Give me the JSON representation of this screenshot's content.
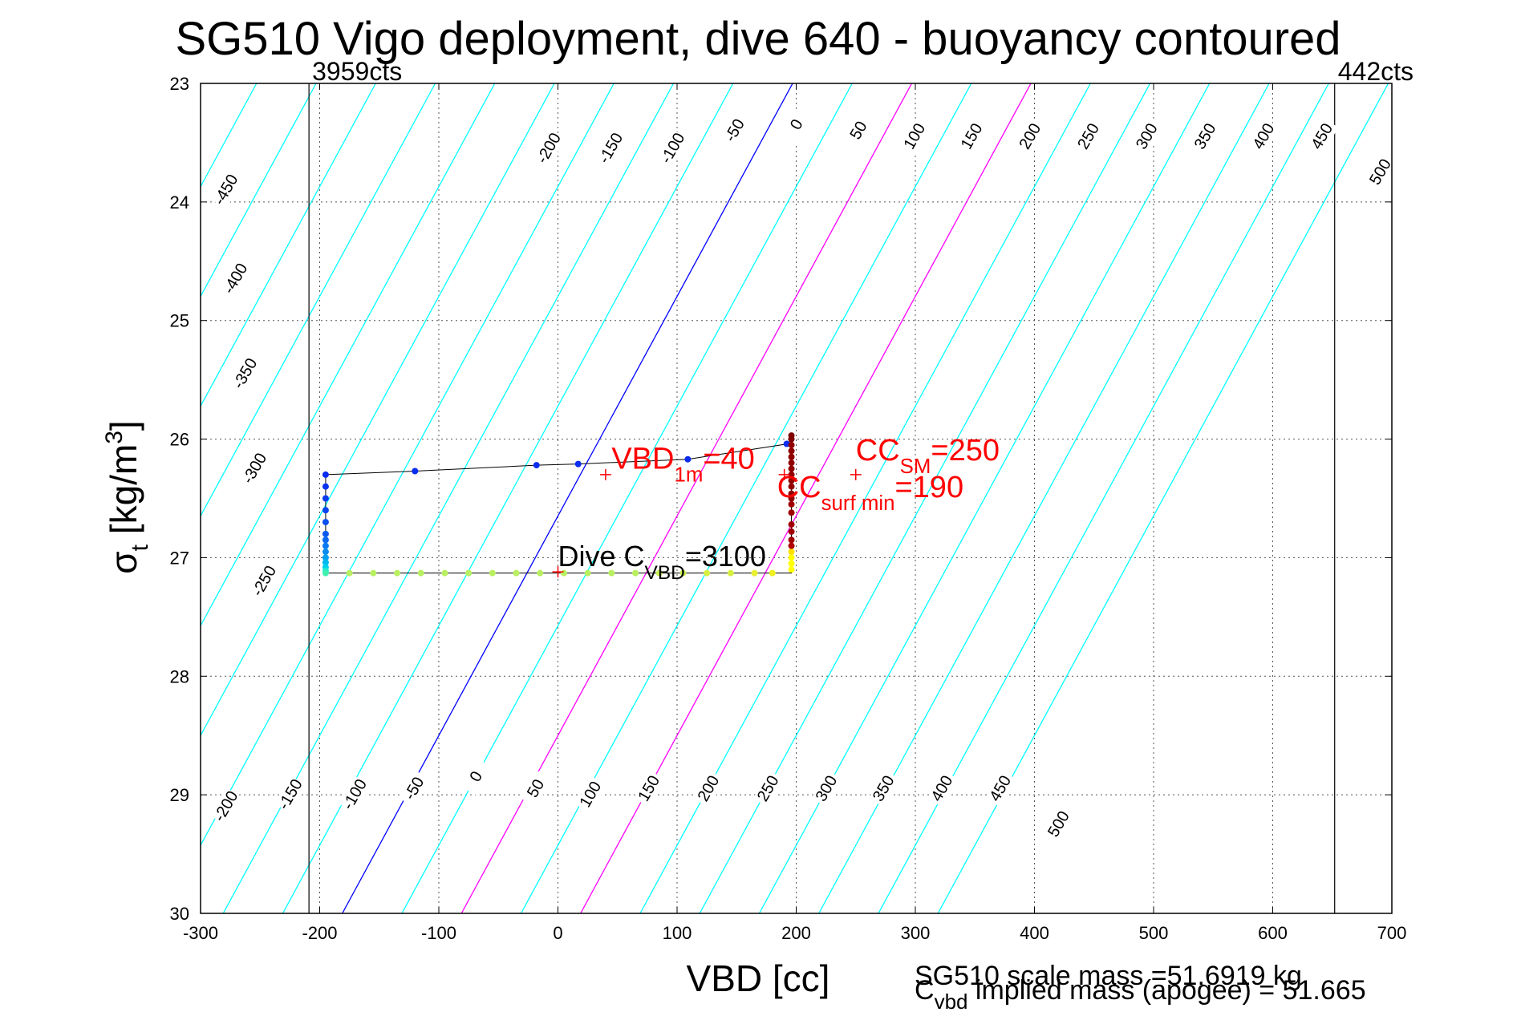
{
  "title": "SG510 Vigo deployment, dive 640 - buoyancy contoured",
  "footer": {
    "scale_mass": "SG510 scale mass =51.6919 kg",
    "implied_mass_prefix": "C",
    "implied_mass_sub": "vbd",
    "implied_mass_rest": " implied mass (apogee) = 51.665"
  },
  "chart_data": {
    "type": "scatter",
    "title": "SG510 Vigo deployment, dive 640 - buoyancy contoured",
    "xlabel": "VBD [cc]",
    "ylabel": {
      "main": "σ",
      "sub": "t",
      "unit_pre": " [kg/m",
      "unit_sup": "3",
      "unit_post": "]"
    },
    "xlim": [
      -300,
      700
    ],
    "ylim": [
      23,
      30
    ],
    "y_reversed": true,
    "grid": true,
    "xticks": [
      "-300",
      "-200",
      "-100",
      "0",
      "100",
      "200",
      "300",
      "400",
      "500",
      "600",
      "700"
    ],
    "yticks": [
      "23",
      "24",
      "25",
      "26",
      "27",
      "28",
      "29",
      "30"
    ],
    "counts_lines": [
      {
        "x": -209,
        "label": "3959cts"
      },
      {
        "x": 652,
        "label": "442cts"
      }
    ],
    "contours": {
      "slope_vbd_per_sigma": 54,
      "anchor_sigma": 23,
      "anchor_vbd_at_zero": 197,
      "levels": [
        -450,
        -400,
        -350,
        -300,
        -250,
        -200,
        -150,
        -100,
        -50,
        0,
        50,
        100,
        150,
        200,
        250,
        300,
        350,
        400,
        450,
        500
      ],
      "highlight_blue": [
        0
      ],
      "highlight_magenta": [
        100,
        200
      ],
      "color_default": "#00ffff",
      "color_blue": "#0000ff",
      "color_magenta": "#ff00ff",
      "top_labels": [
        {
          "level": -450,
          "vbd": -278,
          "sigma": 23.9
        },
        {
          "level": -400,
          "vbd": -270,
          "sigma": 24.65
        },
        {
          "level": -350,
          "vbd": -262,
          "sigma": 25.45
        },
        {
          "level": -300,
          "vbd": -254,
          "sigma": 26.25
        },
        {
          "level": -250,
          "vbd": -246,
          "sigma": 27.2
        },
        {
          "level": -200,
          "vbd": -7,
          "sigma": 23.55
        },
        {
          "level": -150,
          "vbd": 45,
          "sigma": 23.55
        },
        {
          "level": -100,
          "vbd": 97,
          "sigma": 23.55
        },
        {
          "level": -50,
          "vbd": 149,
          "sigma": 23.4
        },
        {
          "level": 0,
          "vbd": 201,
          "sigma": 23.35
        },
        {
          "level": 50,
          "vbd": 253,
          "sigma": 23.4
        },
        {
          "level": 100,
          "vbd": 300,
          "sigma": 23.45
        },
        {
          "level": 150,
          "vbd": 348,
          "sigma": 23.45
        },
        {
          "level": 200,
          "vbd": 397,
          "sigma": 23.45
        },
        {
          "level": 250,
          "vbd": 446,
          "sigma": 23.45
        },
        {
          "level": 300,
          "vbd": 495,
          "sigma": 23.45
        },
        {
          "level": 350,
          "vbd": 544,
          "sigma": 23.45
        },
        {
          "level": 400,
          "vbd": 593,
          "sigma": 23.45
        },
        {
          "level": 450,
          "vbd": 642,
          "sigma": 23.45
        },
        {
          "level": 500,
          "vbd": 691,
          "sigma": 23.75
        }
      ],
      "bottom_labels": [
        {
          "level": -200,
          "vbd": -278,
          "sigma": 29.1
        },
        {
          "level": -150,
          "vbd": -224,
          "sigma": 29.0
        },
        {
          "level": -100,
          "vbd": -170,
          "sigma": 29.0
        },
        {
          "level": -50,
          "vbd": -120,
          "sigma": 28.95
        },
        {
          "level": 0,
          "vbd": -68,
          "sigma": 28.85
        },
        {
          "level": 50,
          "vbd": -18,
          "sigma": 28.95
        },
        {
          "level": 100,
          "vbd": 28,
          "sigma": 29.0
        },
        {
          "level": 150,
          "vbd": 77,
          "sigma": 28.95
        },
        {
          "level": 200,
          "vbd": 127,
          "sigma": 28.95
        },
        {
          "level": 250,
          "vbd": 177,
          "sigma": 28.95
        },
        {
          "level": 300,
          "vbd": 226,
          "sigma": 28.95
        },
        {
          "level": 350,
          "vbd": 274,
          "sigma": 28.95
        },
        {
          "level": 400,
          "vbd": 323,
          "sigma": 28.95
        },
        {
          "level": 450,
          "vbd": 372,
          "sigma": 28.95
        },
        {
          "level": 500,
          "vbd": 421,
          "sigma": 29.25
        }
      ]
    },
    "track_line": [
      [
        -195,
        26.3
      ],
      [
        -120,
        26.27
      ],
      [
        -18,
        26.22
      ],
      [
        17,
        26.21
      ],
      [
        109,
        26.17
      ],
      [
        193,
        26.04
      ],
      [
        196,
        26.0
      ],
      [
        196,
        27.13
      ],
      [
        -195,
        27.13
      ],
      [
        -195,
        26.3
      ]
    ],
    "points": [
      {
        "x": -195,
        "y": 26.3,
        "color": "#0a2cf0"
      },
      {
        "x": -120,
        "y": 26.27,
        "color": "#0a2cf0"
      },
      {
        "x": -18,
        "y": 26.22,
        "color": "#0a2cf0"
      },
      {
        "x": 17,
        "y": 26.21,
        "color": "#0a2cf0"
      },
      {
        "x": 109,
        "y": 26.17,
        "color": "#0a2cf0"
      },
      {
        "x": 192,
        "y": 26.04,
        "color": "#0a2cf0"
      },
      {
        "x": -195,
        "y": 26.4,
        "color": "#0a32f0"
      },
      {
        "x": -195,
        "y": 26.5,
        "color": "#0a3af0"
      },
      {
        "x": -195,
        "y": 26.6,
        "color": "#0a44f0"
      },
      {
        "x": -195,
        "y": 26.7,
        "color": "#0a50f0"
      },
      {
        "x": -195,
        "y": 26.8,
        "color": "#0a5cf0"
      },
      {
        "x": -195,
        "y": 26.85,
        "color": "#0a6af0"
      },
      {
        "x": -195,
        "y": 26.9,
        "color": "#0a7af0"
      },
      {
        "x": -195,
        "y": 26.95,
        "color": "#0a8cf0"
      },
      {
        "x": -195,
        "y": 27.0,
        "color": "#00a0f0"
      },
      {
        "x": -195,
        "y": 27.04,
        "color": "#00b8f0"
      },
      {
        "x": -195,
        "y": 27.08,
        "color": "#00d0f0"
      },
      {
        "x": -195,
        "y": 27.11,
        "color": "#20e8d0"
      },
      {
        "x": -195,
        "y": 27.13,
        "color": "#40f0b0"
      },
      {
        "x": -175,
        "y": 27.13,
        "color": "#b8f060"
      },
      {
        "x": -155,
        "y": 27.13,
        "color": "#b8f060"
      },
      {
        "x": -135,
        "y": 27.13,
        "color": "#b8f060"
      },
      {
        "x": -115,
        "y": 27.13,
        "color": "#b8f060"
      },
      {
        "x": -95,
        "y": 27.13,
        "color": "#b8f060"
      },
      {
        "x": -75,
        "y": 27.13,
        "color": "#b8f060"
      },
      {
        "x": -55,
        "y": 27.13,
        "color": "#b8f060"
      },
      {
        "x": -35,
        "y": 27.13,
        "color": "#b8f060"
      },
      {
        "x": -15,
        "y": 27.13,
        "color": "#b8f060"
      },
      {
        "x": 5,
        "y": 27.13,
        "color": "#b8f060"
      },
      {
        "x": 25,
        "y": 27.13,
        "color": "#b8f060"
      },
      {
        "x": 45,
        "y": 27.13,
        "color": "#b8f060"
      },
      {
        "x": 65,
        "y": 27.13,
        "color": "#b8f060"
      },
      {
        "x": 85,
        "y": 27.13,
        "color": "#c8f050"
      },
      {
        "x": 105,
        "y": 27.13,
        "color": "#c8f050"
      },
      {
        "x": 125,
        "y": 27.13,
        "color": "#d8f040"
      },
      {
        "x": 145,
        "y": 27.13,
        "color": "#d8f040"
      },
      {
        "x": 165,
        "y": 27.13,
        "color": "#e8f030"
      },
      {
        "x": 180,
        "y": 27.13,
        "color": "#f0f020"
      },
      {
        "x": 196,
        "y": 27.1,
        "color": "#ffff00"
      },
      {
        "x": 196,
        "y": 27.05,
        "color": "#ffff00"
      },
      {
        "x": 196,
        "y": 27.0,
        "color": "#ffff00"
      },
      {
        "x": 196,
        "y": 26.95,
        "color": "#ffe000"
      },
      {
        "x": 196,
        "y": 26.9,
        "color": "#b00000"
      },
      {
        "x": 196,
        "y": 26.85,
        "color": "#a00000"
      },
      {
        "x": 196,
        "y": 26.78,
        "color": "#a00000"
      },
      {
        "x": 196,
        "y": 26.72,
        "color": "#a00000"
      },
      {
        "x": 196,
        "y": 26.62,
        "color": "#a00000"
      },
      {
        "x": 196,
        "y": 26.55,
        "color": "#a00000"
      },
      {
        "x": 196,
        "y": 26.5,
        "color": "#900000"
      },
      {
        "x": 196,
        "y": 26.46,
        "color": "#900000"
      },
      {
        "x": 196,
        "y": 26.4,
        "color": "#900000"
      },
      {
        "x": 196,
        "y": 26.35,
        "color": "#900000"
      },
      {
        "x": 196,
        "y": 26.3,
        "color": "#900000"
      },
      {
        "x": 196,
        "y": 26.25,
        "color": "#900000"
      },
      {
        "x": 196,
        "y": 26.2,
        "color": "#900000"
      },
      {
        "x": 196,
        "y": 26.15,
        "color": "#900000"
      },
      {
        "x": 196,
        "y": 26.1,
        "color": "#900000"
      },
      {
        "x": 196,
        "y": 26.05,
        "color": "#900000"
      },
      {
        "x": 196,
        "y": 26.0,
        "color": "#800000"
      },
      {
        "x": 196,
        "y": 25.97,
        "color": "#800000"
      }
    ],
    "markers": [
      {
        "x": 40,
        "y": 26.3,
        "color": "#ff0000"
      },
      {
        "x": 250,
        "y": 26.3,
        "color": "#ff0000"
      },
      {
        "x": 190,
        "y": 26.3,
        "color": "#ff0000"
      },
      {
        "x": 0,
        "y": 27.12,
        "color": "#ff0000"
      }
    ],
    "annotations": [
      {
        "x": 45,
        "y": 26.25,
        "color": "#ff0000",
        "main": "VBD",
        "sub": "1m",
        "rest": "=40",
        "size": 38
      },
      {
        "x": 250,
        "y": 26.18,
        "color": "#ff0000",
        "main": "CC",
        "sub": "SM",
        "rest": "=250",
        "size": 38
      },
      {
        "x": 184,
        "y": 26.49,
        "color": "#ff0000",
        "main": "CC",
        "sub": "surf min",
        "rest": "=190",
        "size": 38
      },
      {
        "x": 0,
        "y": 27.07,
        "color": "#000000",
        "main": "Dive C",
        "sub": "VBD",
        "rest": "=3100",
        "size": 36
      }
    ]
  }
}
